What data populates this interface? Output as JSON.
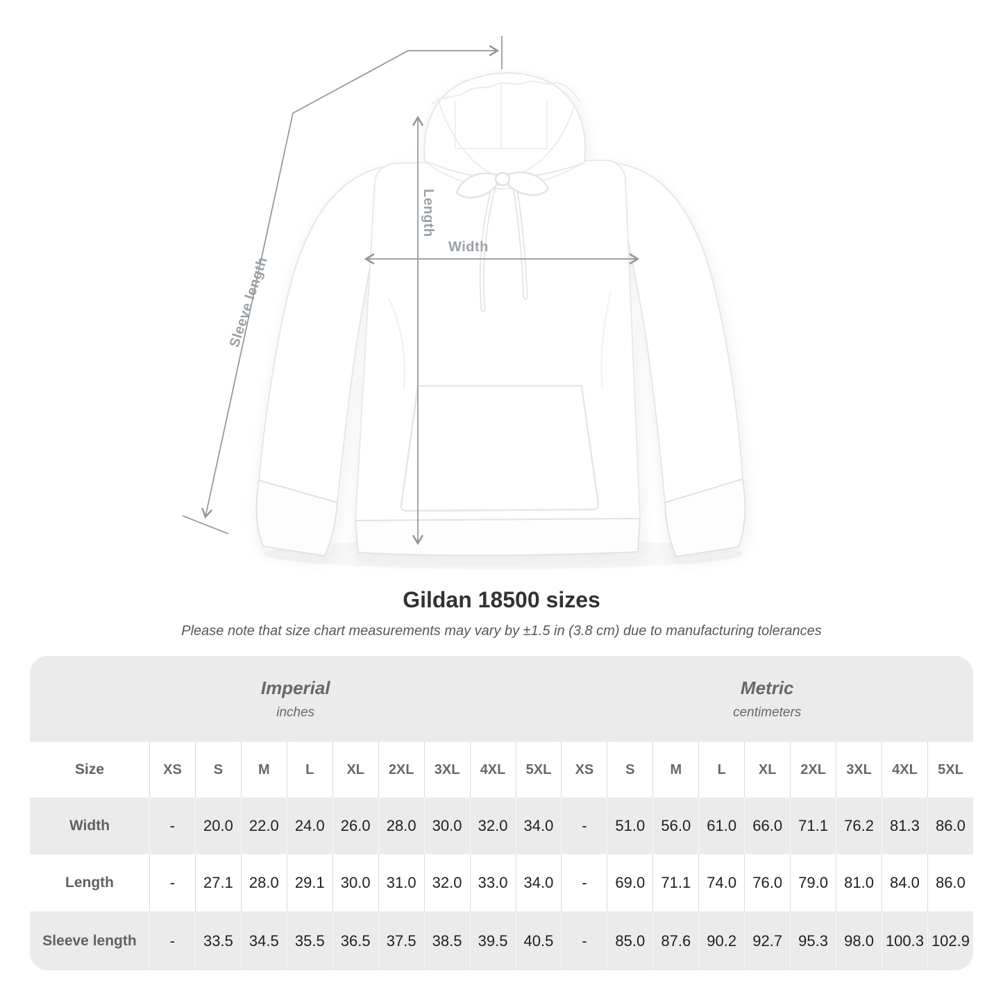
{
  "diagram": {
    "length_label": "Length",
    "width_label": "Width",
    "sleeve_label": "Sleeve length"
  },
  "title": "Gildan 18500 sizes",
  "subtitle": "Please note that size chart measurements may vary by ±1.5 in (3.8 cm) due to manufacturing tolerances",
  "chart_data": {
    "type": "table",
    "corner_label": "Size",
    "unit_groups": [
      {
        "label": "Imperial",
        "sublabel": "inches"
      },
      {
        "label": "Metric",
        "sublabel": "centimeters"
      }
    ],
    "sizes": [
      "XS",
      "S",
      "M",
      "L",
      "XL",
      "2XL",
      "3XL",
      "4XL",
      "5XL"
    ],
    "rows": [
      {
        "label": "Width",
        "imperial": [
          "-",
          "20.0",
          "22.0",
          "24.0",
          "26.0",
          "28.0",
          "30.0",
          "32.0",
          "34.0"
        ],
        "metric": [
          "-",
          "51.0",
          "56.0",
          "61.0",
          "66.0",
          "71.1",
          "76.2",
          "81.3",
          "86.0"
        ]
      },
      {
        "label": "Length",
        "imperial": [
          "-",
          "27.1",
          "28.0",
          "29.1",
          "30.0",
          "31.0",
          "32.0",
          "33.0",
          "34.0"
        ],
        "metric": [
          "-",
          "69.0",
          "71.1",
          "74.0",
          "76.0",
          "79.0",
          "81.0",
          "84.0",
          "86.0"
        ]
      },
      {
        "label": "Sleeve length",
        "imperial": [
          "-",
          "33.5",
          "34.5",
          "35.5",
          "36.5",
          "37.5",
          "38.5",
          "39.5",
          "40.5"
        ],
        "metric": [
          "-",
          "85.0",
          "87.6",
          "90.2",
          "92.7",
          "95.3",
          "98.0",
          "100.3",
          "102.9"
        ]
      }
    ]
  },
  "colors": {
    "band_gray": "#ebebeb",
    "grid_on_white": "#d9d9d9",
    "grid_on_gray": "#f8f8f8",
    "heading_gray": "#64696e",
    "number_text": "#1d1f20",
    "arrow_gray": "#909599",
    "diagram_label_gray": "#9aa0a5"
  }
}
